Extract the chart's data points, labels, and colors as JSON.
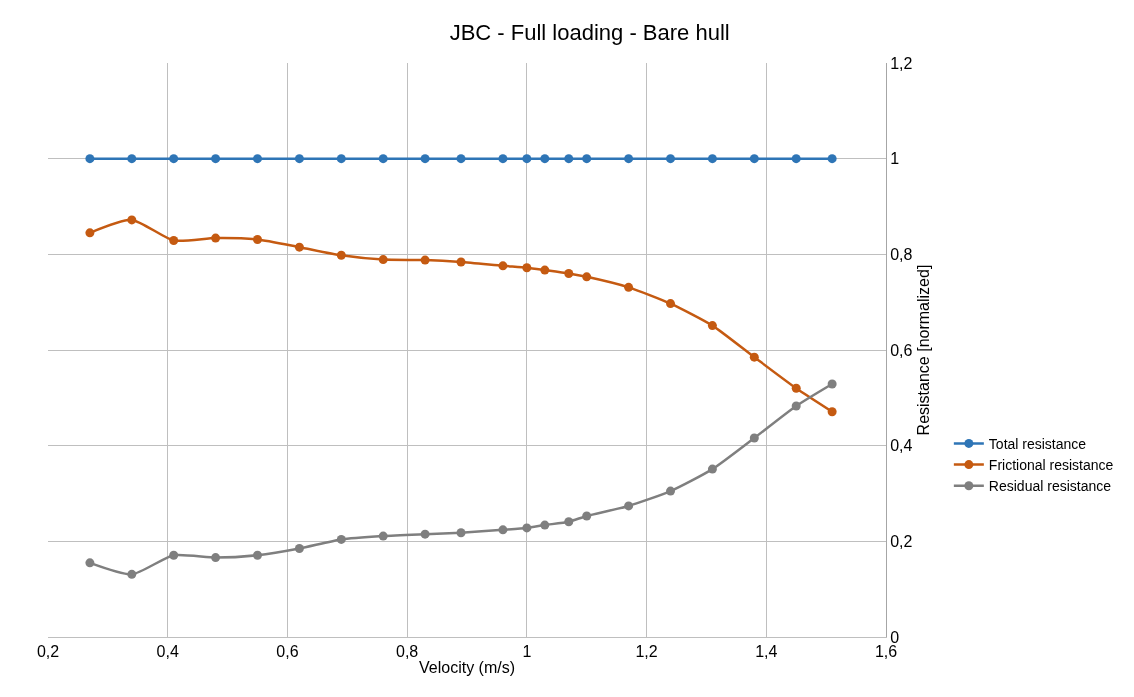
{
  "chart_data": {
    "type": "line",
    "title": "JBC - Full loading - Bare hull",
    "xlabel": "Velocity (m/s)",
    "y2label": "Resistance [normalized]",
    "x": [
      0.27,
      0.34,
      0.41,
      0.48,
      0.55,
      0.62,
      0.69,
      0.76,
      0.83,
      0.89,
      0.96,
      1.0,
      1.03,
      1.07,
      1.1,
      1.17,
      1.24,
      1.31,
      1.38,
      1.45,
      1.51
    ],
    "series": [
      {
        "name": "Total resistance",
        "color": "#2e75b6",
        "axis": "y2",
        "values": [
          1,
          1,
          1,
          1,
          1,
          1,
          1,
          1,
          1,
          1,
          1,
          1,
          1,
          1,
          1,
          1,
          1,
          1,
          1,
          1,
          1
        ]
      },
      {
        "name": "Frictional resistance",
        "color": "#c55a11",
        "axis": "y2",
        "values": [
          0.845,
          0.872,
          0.829,
          0.834,
          0.831,
          0.815,
          0.798,
          0.789,
          0.788,
          0.784,
          0.776,
          0.772,
          0.767,
          0.76,
          0.753,
          0.731,
          0.697,
          0.651,
          0.585,
          0.52,
          0.471
        ]
      },
      {
        "name": "Residual resistance",
        "color": "#7f7f7f",
        "axis": "y2",
        "values": [
          0.155,
          0.131,
          0.171,
          0.166,
          0.171,
          0.185,
          0.204,
          0.211,
          0.215,
          0.218,
          0.224,
          0.228,
          0.234,
          0.241,
          0.253,
          0.274,
          0.305,
          0.351,
          0.416,
          0.483,
          0.529
        ]
      }
    ],
    "xlim": [
      0.2,
      1.6
    ],
    "xticks": [
      {
        "value": 0.2,
        "label": "0,2"
      },
      {
        "value": 0.4,
        "label": "0,4"
      },
      {
        "value": 0.6,
        "label": "0,6"
      },
      {
        "value": 0.8,
        "label": "0,8"
      },
      1,
      {
        "value": 1.2,
        "label": "1,2"
      },
      {
        "value": 1.4,
        "label": "1,4"
      },
      {
        "value": 1.6,
        "label": "1,6"
      }
    ],
    "y2lim": [
      0,
      1.2
    ],
    "y2ticks": [
      0,
      {
        "value": 0.2,
        "label": "0,2"
      },
      {
        "value": 0.4,
        "label": "0,4"
      },
      {
        "value": 0.6,
        "label": "0,6"
      },
      {
        "value": 0.8,
        "label": "0,8"
      },
      1,
      {
        "value": 1.2,
        "label": "1,2"
      }
    ],
    "grid": true,
    "legend": "right",
    "marker": "circle",
    "line_style": "solid"
  }
}
